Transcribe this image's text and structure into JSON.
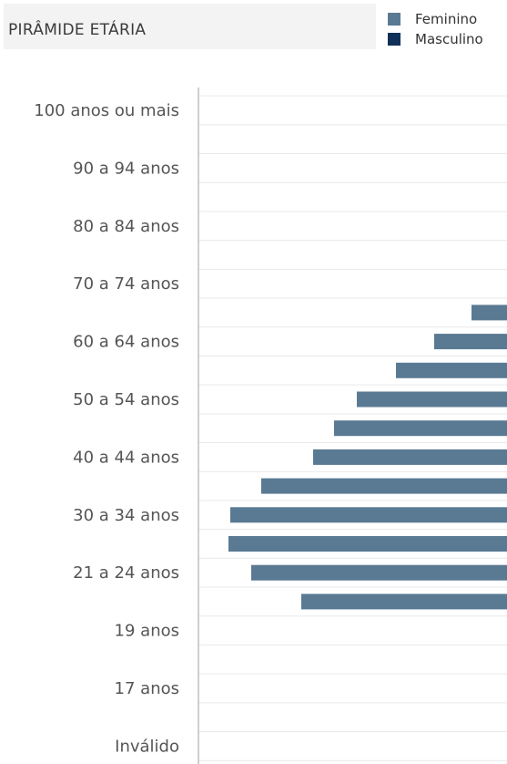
{
  "header": {
    "title": "PIRÂMIDE ETÁRIA"
  },
  "colors": {
    "feminino": "#5a7a93",
    "masculino": "#0f3057",
    "grid": "#e9e9e9",
    "axis": "#bdbdbd"
  },
  "chart_data": {
    "type": "bar",
    "orientation": "horizontal",
    "legend": {
      "position": "top-right",
      "entries": [
        "Feminino",
        "Masculino"
      ]
    },
    "categories": [
      "100 anos ou mais",
      "",
      "90 a 94 anos",
      "",
      "80 a 84 anos",
      "",
      "70 a 74 anos",
      "",
      "60 a 64 anos",
      "",
      "50 a 54 anos",
      "",
      "40 a 44 anos",
      "",
      "30 a 34 anos",
      "",
      "21 a 24 anos",
      "",
      "19 anos",
      "",
      "17 anos",
      "",
      "Inválido"
    ],
    "series": [
      {
        "name": "Feminino",
        "values": [
          0,
          0,
          0,
          0,
          0,
          0,
          0,
          39,
          80,
          122,
          165,
          190,
          213,
          270,
          304,
          306,
          281,
          226,
          0,
          0,
          0,
          0,
          0
        ]
      }
    ],
    "grid": true
  }
}
